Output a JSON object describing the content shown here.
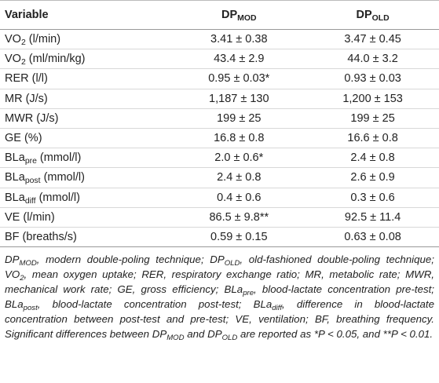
{
  "table": {
    "header": [
      [
        {
          "text": "Variable"
        }
      ],
      [
        {
          "text": "DP"
        },
        {
          "text": "MOD",
          "sub": true
        }
      ],
      [
        {
          "text": "DP"
        },
        {
          "text": "OLD",
          "sub": true
        }
      ]
    ],
    "rows": [
      [
        [
          {
            "text": "VO"
          },
          {
            "text": "2",
            "sub": true
          },
          {
            "text": " (l/min)"
          }
        ],
        "3.41 ± 0.38",
        "3.47 ± 0.45"
      ],
      [
        [
          {
            "text": "VO"
          },
          {
            "text": "2",
            "sub": true
          },
          {
            "text": " (ml/min/kg)"
          }
        ],
        "43.4 ± 2.9",
        "44.0 ± 3.2"
      ],
      [
        [
          {
            "text": "RER (l/l)"
          }
        ],
        "0.95 ± 0.03*",
        "0.93 ± 0.03"
      ],
      [
        [
          {
            "text": "MR (J/s)"
          }
        ],
        "1,187 ± 130",
        "1,200 ± 153"
      ],
      [
        [
          {
            "text": "MWR (J/s)"
          }
        ],
        "199 ± 25",
        "199 ± 25"
      ],
      [
        [
          {
            "text": "GE (%)"
          }
        ],
        "16.8 ± 0.8",
        "16.6 ± 0.8"
      ],
      [
        [
          {
            "text": "BLa"
          },
          {
            "text": "pre",
            "sub": true
          },
          {
            "text": " (mmol/l)"
          }
        ],
        "2.0 ± 0.6*",
        "2.4 ± 0.8"
      ],
      [
        [
          {
            "text": "BLa"
          },
          {
            "text": "post",
            "sub": true
          },
          {
            "text": " (mmol/l)"
          }
        ],
        "2.4 ± 0.8",
        "2.6 ± 0.9"
      ],
      [
        [
          {
            "text": "BLa"
          },
          {
            "text": "diff",
            "sub": true
          },
          {
            "text": " (mmol/l)"
          }
        ],
        "0.4 ± 0.6",
        "0.3 ± 0.6"
      ],
      [
        [
          {
            "text": "VE (l/min)"
          }
        ],
        "86.5 ± 9.8**",
        "92.5 ± 11.4"
      ],
      [
        [
          {
            "text": "BF (breaths/s)"
          }
        ],
        "0.59 ± 0.15",
        "0.63 ± 0.08"
      ]
    ]
  },
  "footnote": [
    {
      "text": "DP"
    },
    {
      "text": "MOD",
      "sub": true
    },
    {
      "text": ", modern double-poling technique; DP"
    },
    {
      "text": "OLD",
      "sub": true
    },
    {
      "text": ", old-fashioned double-poling technique; VO"
    },
    {
      "text": "2",
      "sub": true
    },
    {
      "text": ", mean oxygen uptake; RER, respiratory exchange ratio; MR, metabolic rate; MWR, mechanical work rate; GE, gross efficiency; BLa"
    },
    {
      "text": "pre",
      "sub": true
    },
    {
      "text": ", blood-lactate concentration pre-test; BLa"
    },
    {
      "text": "post",
      "sub": true
    },
    {
      "text": ", blood-lactate concentration post-test; BLa"
    },
    {
      "text": "diff",
      "sub": true
    },
    {
      "text": ", difference in blood-lactate concentration between post-test and pre-test; VE, ventilation; BF, breathing frequency. Significant differences between DP"
    },
    {
      "text": "MOD",
      "sub": true
    },
    {
      "text": " and DP"
    },
    {
      "text": "OLD",
      "sub": true
    },
    {
      "text": " are reported as *P < 0.05, and **P < 0.01."
    }
  ]
}
